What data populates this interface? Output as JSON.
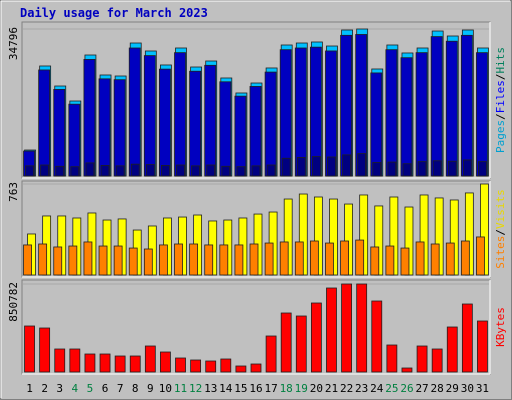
{
  "title": "Daily usage for March 2023",
  "chart_data": [
    {
      "type": "bar",
      "ylim": [
        0,
        34796
      ],
      "yticks": [
        34796
      ],
      "legend_separator": "/",
      "categories": [
        "1",
        "2",
        "3",
        "4",
        "5",
        "6",
        "7",
        "8",
        "9",
        "10",
        "11",
        "12",
        "13",
        "14",
        "15",
        "16",
        "17",
        "18",
        "19",
        "20",
        "21",
        "22",
        "23",
        "24",
        "25",
        "26",
        "27",
        "28",
        "29",
        "30",
        "31"
      ],
      "category_colors": [
        "#000000",
        "#000000",
        "#000000",
        "#008040",
        "#008040",
        "#000000",
        "#000000",
        "#000000",
        "#000000",
        "#000000",
        "#008040",
        "#008040",
        "#000000",
        "#000000",
        "#000000",
        "#000000",
        "#000000",
        "#008040",
        "#008040",
        "#000000",
        "#000000",
        "#000000",
        "#000000",
        "#000000",
        "#008040",
        "#008040",
        "#000000",
        "#000000",
        "#000000",
        "#000000",
        "#000000"
      ],
      "series": [
        {
          "name": "Hits",
          "color": "#00c0ff",
          "label_color": "#00805c",
          "values": [
            6150,
            26040,
            21300,
            17750,
            28640,
            23910,
            23670,
            31480,
            29590,
            26280,
            30300,
            25800,
            27220,
            23200,
            19650,
            22010,
            25570,
            31010,
            31480,
            31720,
            30770,
            34560,
            34796,
            25330,
            31010,
            29120,
            30300,
            34320,
            33140,
            34560,
            30300
          ]
        },
        {
          "name": "Files",
          "color": "#0000c0",
          "label_color": "#0000ff",
          "values": [
            5900,
            25100,
            20500,
            17000,
            27600,
            23000,
            22800,
            30300,
            28500,
            25300,
            29200,
            24800,
            26200,
            22300,
            18900,
            21200,
            24600,
            29900,
            30300,
            30500,
            29600,
            33300,
            33500,
            24400,
            29900,
            28000,
            29200,
            33000,
            31900,
            33300,
            29200
          ]
        },
        {
          "name": "Pages",
          "color": "#000080",
          "label_color": "#00a0d0",
          "values": [
            2400,
            2600,
            2300,
            2200,
            3100,
            2500,
            2400,
            2800,
            2700,
            2500,
            2600,
            2400,
            2600,
            2300,
            2200,
            2400,
            2600,
            4200,
            4400,
            4600,
            4500,
            5000,
            5300,
            3200,
            3300,
            2900,
            3400,
            3600,
            3500,
            3800,
            3400
          ]
        }
      ]
    },
    {
      "type": "bar",
      "ylim": [
        0,
        763
      ],
      "yticks": [
        763
      ],
      "legend_separator": "/",
      "series": [
        {
          "name": "Visits",
          "color": "#ffff00",
          "label_color": "#e8d800",
          "values": [
            344,
            495,
            495,
            478,
            520,
            461,
            470,
            377,
            411,
            478,
            486,
            503,
            453,
            461,
            478,
            511,
            528,
            637,
            679,
            654,
            637,
            595,
            671,
            579,
            654,
            570,
            671,
            646,
            629,
            688,
            763
          ]
        },
        {
          "name": "Sites",
          "color": "#ff8000",
          "label_color": "#ff8000",
          "values": [
            252,
            260,
            235,
            243,
            277,
            243,
            243,
            226,
            218,
            252,
            260,
            260,
            252,
            252,
            252,
            260,
            268,
            277,
            277,
            285,
            268,
            285,
            293,
            235,
            243,
            226,
            277,
            260,
            268,
            285,
            319
          ]
        }
      ]
    },
    {
      "type": "bar",
      "ylim": [
        0,
        850782
      ],
      "yticks": [
        850782
      ],
      "legend_separator": "/",
      "series": [
        {
          "name": "KBytes",
          "color": "#ff0000",
          "label_color": "#ff0000",
          "values": [
            444728,
            425392,
            222364,
            222364,
            174024,
            174024,
            154688,
            154688,
            251368,
            193360,
            135352,
            116016,
            106348,
            125684,
            58008,
            77344,
            348048,
            570412,
            541408,
            667092,
            812112,
            850782,
            850782,
            686428,
            261036,
            38672,
            251368,
            222364,
            435060,
            657424,
            493068
          ]
        }
      ]
    }
  ]
}
